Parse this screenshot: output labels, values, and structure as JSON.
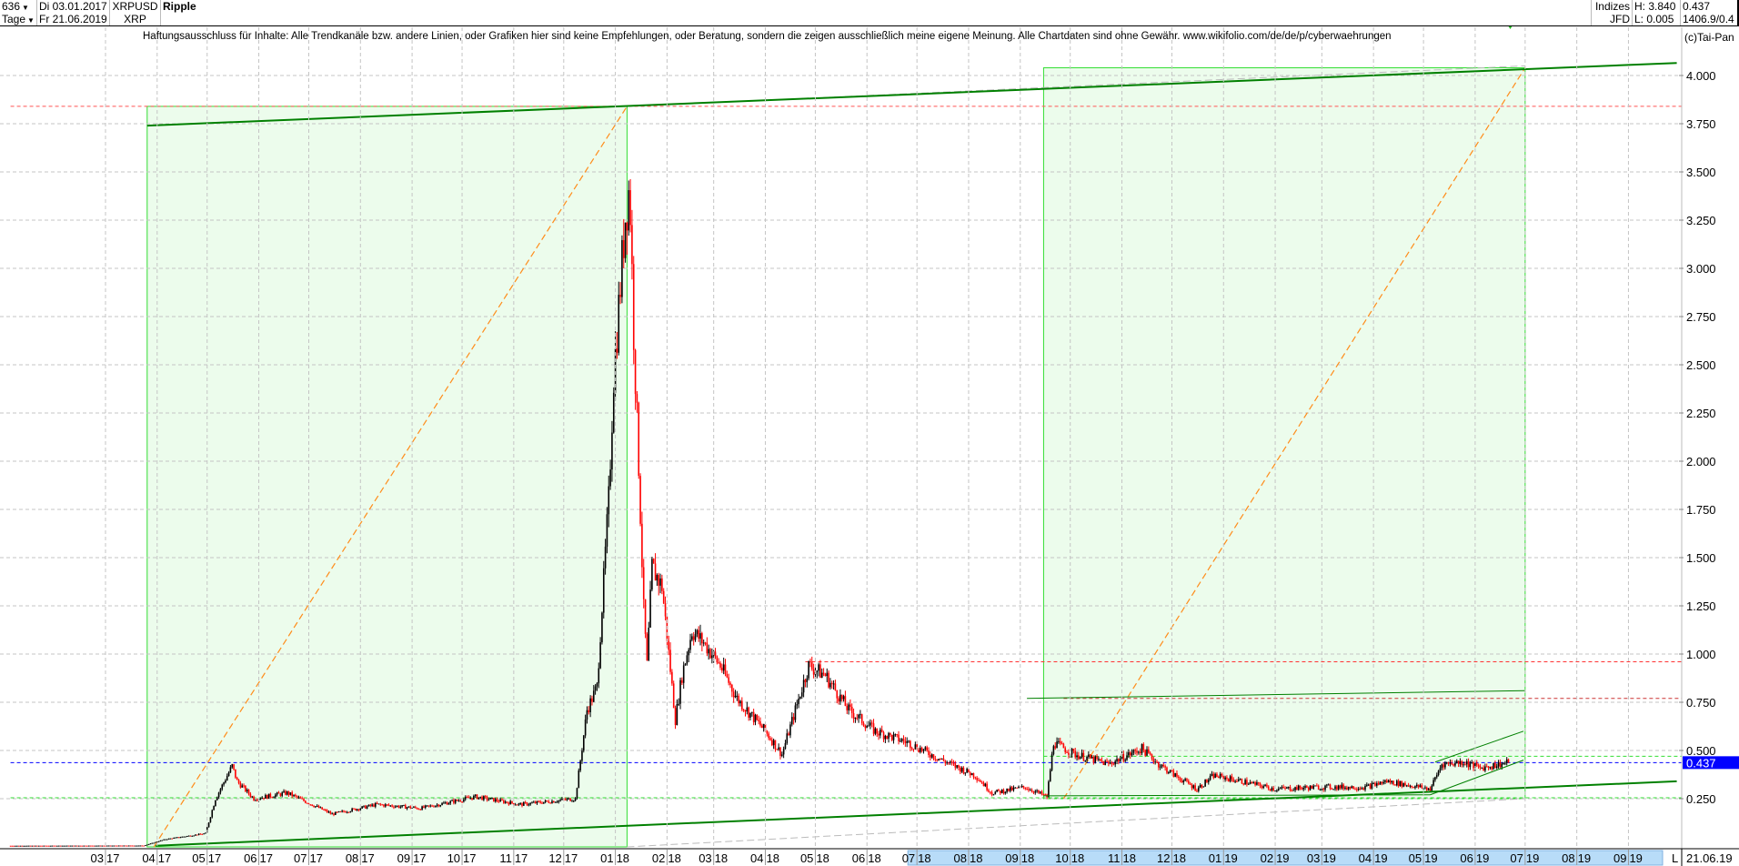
{
  "header": {
    "count": "636",
    "period": "Tage",
    "date_from": "Di 03.01.2017",
    "date_to": "Fr 21.06.2019",
    "symbol": "XRPUSD",
    "symbol_short": "XRP",
    "title": "Ripple",
    "market": "Indizes",
    "broker": "JFD",
    "high": "H: 3.840",
    "low": "L: 0.005",
    "last": "0.437",
    "extra": "1406.9/0.4"
  },
  "disclaimer": "Haftungsausschluss für Inhalte: Alle Trendkanäle bzw. andere Linien, oder Grafiken hier sind keine Empfehlungen, oder Beratung, sondern die zeigen ausschließlich meine eigene Meinung. Alle Chartdaten sind ohne Gewähr.  www.wikifolio.com/de/de/p/cyberwaehrungen",
  "copyright": "(c)Tai-Pan",
  "chart_data": {
    "type": "candlestick",
    "ylim": [
      0,
      4.0
    ],
    "y_ticks": [
      "4.000",
      "3.750",
      "3.500",
      "3.250",
      "3.000",
      "2.750",
      "2.500",
      "2.250",
      "2.000",
      "1.750",
      "1.500",
      "1.250",
      "1.000",
      "0.750",
      "0.500",
      "0.250"
    ],
    "x_ticks": [
      [
        "03",
        "17",
        "2017-03-01"
      ],
      [
        "04",
        "17",
        "2017-04-01"
      ],
      [
        "05",
        "17",
        "2017-05-01"
      ],
      [
        "06",
        "17",
        "2017-06-01"
      ],
      [
        "07",
        "17",
        "2017-07-01"
      ],
      [
        "08",
        "17",
        "2017-08-01"
      ],
      [
        "09",
        "17",
        "2017-09-01"
      ],
      [
        "10",
        "17",
        "2017-10-01"
      ],
      [
        "11",
        "17",
        "2017-11-01"
      ],
      [
        "12",
        "17",
        "2017-12-01"
      ],
      [
        "01",
        "18",
        "2018-01-01"
      ],
      [
        "02",
        "18",
        "2018-02-01"
      ],
      [
        "03",
        "18",
        "2018-03-01"
      ],
      [
        "04",
        "18",
        "2018-04-01"
      ],
      [
        "05",
        "18",
        "2018-05-01"
      ],
      [
        "06",
        "18",
        "2018-06-01"
      ],
      [
        "07",
        "18",
        "2018-07-01"
      ],
      [
        "08",
        "18",
        "2018-08-01"
      ],
      [
        "09",
        "18",
        "2018-09-01"
      ],
      [
        "10",
        "18",
        "2018-10-01"
      ],
      [
        "11",
        "18",
        "2018-11-01"
      ],
      [
        "12",
        "18",
        "2018-12-01"
      ],
      [
        "01",
        "19",
        "2019-01-01"
      ],
      [
        "02",
        "19",
        "2019-02-01"
      ],
      [
        "03",
        "19",
        "2019-03-01"
      ],
      [
        "04",
        "19",
        "2019-04-01"
      ],
      [
        "05",
        "19",
        "2019-05-01"
      ],
      [
        "06",
        "19",
        "2019-06-01"
      ],
      [
        "07",
        "19",
        "2019-07-01"
      ],
      [
        "08",
        "19",
        "2019-08-01"
      ],
      [
        "09",
        "19",
        "2019-09-01"
      ]
    ],
    "x_end_label_mode": "L",
    "x_end_label": "21.06.19",
    "grid": true,
    "current_price": 0.437,
    "current_price_label": "0.437",
    "colors": {
      "up": "#000000",
      "down": "#ff0000",
      "box_fill": "#ecfcec",
      "box_border": "#33dd33",
      "trend": "#008000",
      "fib": "#ff8c1a",
      "current": "#0000ff"
    },
    "close_path": [
      [
        "2017-01-03",
        0.006
      ],
      [
        "2017-03-24",
        0.007
      ],
      [
        "2017-04-06",
        0.04
      ],
      [
        "2017-04-30",
        0.07
      ],
      [
        "2017-05-06",
        0.25
      ],
      [
        "2017-05-16",
        0.42
      ],
      [
        "2017-05-19",
        0.34
      ],
      [
        "2017-05-29",
        0.25
      ],
      [
        "2017-06-18",
        0.28
      ],
      [
        "2017-07-15",
        0.17
      ],
      [
        "2017-08-11",
        0.22
      ],
      [
        "2017-09-06",
        0.2
      ],
      [
        "2017-10-09",
        0.26
      ],
      [
        "2017-11-05",
        0.22
      ],
      [
        "2017-12-08",
        0.25
      ],
      [
        "2017-12-15",
        0.71
      ],
      [
        "2017-12-21",
        0.83
      ],
      [
        "2017-12-28",
        1.8
      ],
      [
        "2017-12-31",
        2.44
      ],
      [
        "2018-01-07",
        3.27
      ],
      [
        "2018-01-09",
        3.4
      ],
      [
        "2018-01-10",
        3.3
      ],
      [
        "2018-01-12",
        2.67
      ],
      [
        "2018-01-15",
        1.98
      ],
      [
        "2018-01-18",
        1.23
      ],
      [
        "2018-01-20",
        0.94
      ],
      [
        "2018-01-23",
        1.45
      ],
      [
        "2018-01-29",
        1.35
      ],
      [
        "2018-02-06",
        0.66
      ],
      [
        "2018-02-10",
        0.89
      ],
      [
        "2018-02-16",
        1.12
      ],
      [
        "2018-02-23",
        1.06
      ],
      [
        "2018-03-05",
        0.94
      ],
      [
        "2018-03-15",
        0.77
      ],
      [
        "2018-04-01",
        0.6
      ],
      [
        "2018-04-11",
        0.48
      ],
      [
        "2018-04-27",
        0.94
      ],
      [
        "2018-05-07",
        0.89
      ],
      [
        "2018-05-21",
        0.71
      ],
      [
        "2018-06-06",
        0.6
      ],
      [
        "2018-06-26",
        0.54
      ],
      [
        "2018-07-16",
        0.45
      ],
      [
        "2018-08-05",
        0.37
      ],
      [
        "2018-08-15",
        0.28
      ],
      [
        "2018-09-04",
        0.31
      ],
      [
        "2018-09-17",
        0.26
      ],
      [
        "2018-09-21",
        0.54
      ],
      [
        "2018-10-04",
        0.48
      ],
      [
        "2018-10-24",
        0.43
      ],
      [
        "2018-11-13",
        0.51
      ],
      [
        "2018-11-23",
        0.43
      ],
      [
        "2018-12-03",
        0.37
      ],
      [
        "2018-12-16",
        0.3
      ],
      [
        "2018-12-26",
        0.37
      ],
      [
        "2019-01-12",
        0.34
      ],
      [
        "2019-02-01",
        0.3
      ],
      [
        "2019-02-28",
        0.31
      ],
      [
        "2019-03-27",
        0.31
      ],
      [
        "2019-04-09",
        0.34
      ],
      [
        "2019-05-05",
        0.3
      ],
      [
        "2019-05-12",
        0.43
      ],
      [
        "2019-05-25",
        0.44
      ],
      [
        "2019-06-04",
        0.41
      ],
      [
        "2019-06-21",
        0.437
      ]
    ],
    "annotations": {
      "boxes": [
        {
          "from": "2017-03-26",
          "to": "2018-01-08",
          "low": 0.0,
          "high": 3.84
        },
        {
          "from": "2018-09-15",
          "to": "2019-07-01",
          "low": 0.25,
          "high": 4.04
        }
      ],
      "fib_diagonals": [
        {
          "p1": [
            "2017-03-30",
            0.0
          ],
          "p2": [
            "2018-01-08",
            3.84
          ]
        },
        {
          "p1": [
            "2018-09-27",
            0.25
          ],
          "p2": [
            "2019-07-01",
            4.04
          ]
        }
      ],
      "trend_lines": [
        {
          "p1": [
            "2017-03-26",
            3.74
          ],
          "p2": [
            "2019-09-30",
            4.065
          ],
          "width": 2
        },
        {
          "p1": [
            "2017-03-31",
            0.006
          ],
          "p2": [
            "2019-09-30",
            0.34
          ],
          "width": 2
        },
        {
          "p1": [
            "2018-09-05",
            0.77
          ],
          "p2": [
            "2019-07-01",
            0.81
          ],
          "width": 1
        },
        {
          "p1": [
            "2018-09-15",
            0.265
          ],
          "p2": [
            "2019-05-05",
            0.27
          ],
          "width": 1
        },
        {
          "p1": [
            "2019-05-08",
            0.44
          ],
          "p2": [
            "2019-06-30",
            0.6
          ],
          "width": 1
        },
        {
          "p1": [
            "2019-05-05",
            0.27
          ],
          "p2": [
            "2019-06-30",
            0.45
          ],
          "width": 1
        }
      ],
      "gray_dashed_lines": [
        {
          "p1": [
            "2018-01-08",
            3.84
          ],
          "p2": [
            "2019-07-01",
            4.05
          ]
        },
        {
          "p1": [
            "2018-01-08",
            0.0
          ],
          "p2": [
            "2019-07-01",
            0.25
          ]
        }
      ],
      "horizontal_levels": [
        {
          "price": 3.84,
          "from": "2017-01-03",
          "color": "#ff5555"
        },
        {
          "price": 0.96,
          "from": "2018-04-25",
          "color": "#ff3333"
        },
        {
          "price": 0.77,
          "from": "2018-09-27",
          "color": "#cc3333"
        },
        {
          "price": 0.47,
          "from": "2018-09-15",
          "color": "#33dd33"
        },
        {
          "price": 0.255,
          "from": "2017-01-03",
          "color": "#33dd33"
        },
        {
          "price": 0.437,
          "from": "2017-01-03",
          "color": "#0000ff"
        }
      ]
    }
  }
}
